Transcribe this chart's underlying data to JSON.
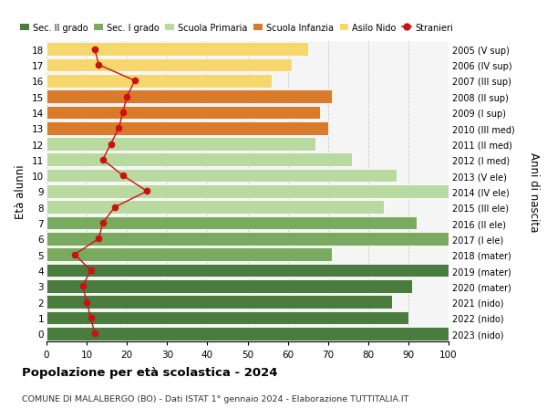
{
  "ages": [
    18,
    17,
    16,
    15,
    14,
    13,
    12,
    11,
    10,
    9,
    8,
    7,
    6,
    5,
    4,
    3,
    2,
    1,
    0
  ],
  "year_labels": [
    "2005 (V sup)",
    "2006 (IV sup)",
    "2007 (III sup)",
    "2008 (II sup)",
    "2009 (I sup)",
    "2010 (III med)",
    "2011 (II med)",
    "2012 (I med)",
    "2013 (V ele)",
    "2014 (IV ele)",
    "2015 (III ele)",
    "2016 (II ele)",
    "2017 (I ele)",
    "2018 (mater)",
    "2019 (mater)",
    "2020 (mater)",
    "2021 (nido)",
    "2022 (nido)",
    "2023 (nido)"
  ],
  "bar_values": [
    100,
    90,
    86,
    91,
    100,
    71,
    100,
    92,
    84,
    100,
    87,
    76,
    67,
    70,
    68,
    71,
    56,
    61,
    65
  ],
  "stranieri_values": [
    12,
    11,
    10,
    9,
    11,
    7,
    13,
    14,
    17,
    25,
    19,
    14,
    16,
    18,
    19,
    20,
    22,
    13,
    12
  ],
  "bar_colors": [
    "#4a7c40",
    "#4a7c40",
    "#4a7c40",
    "#4a7c40",
    "#4a7c40",
    "#7aaa5f",
    "#7aaa5f",
    "#7aaa5f",
    "#b8d9a0",
    "#b8d9a0",
    "#b8d9a0",
    "#b8d9a0",
    "#b8d9a0",
    "#d97b2a",
    "#d97b2a",
    "#d97b2a",
    "#f5d76e",
    "#f5d76e",
    "#f5d76e"
  ],
  "legend_labels": [
    "Sec. II grado",
    "Sec. I grado",
    "Scuola Primaria",
    "Scuola Infanzia",
    "Asilo Nido",
    "Stranieri"
  ],
  "legend_colors": [
    "#4a7c40",
    "#7aaa5f",
    "#b8d9a0",
    "#d97b2a",
    "#f5d76e",
    "#cc1111"
  ],
  "title": "Popolazione per età scolastica - 2024",
  "subtitle": "COMUNE DI MALALBERGO (BO) - Dati ISTAT 1° gennaio 2024 - Elaborazione TUTTITALIA.IT",
  "ylabel": "Età alunni",
  "y2label": "Anni di nascita",
  "xlim": [
    0,
    100
  ],
  "stranieri_color": "#cc1111",
  "background_color": "#ffffff",
  "ax_facecolor": "#f5f5f5",
  "grid_color": "#cccccc"
}
